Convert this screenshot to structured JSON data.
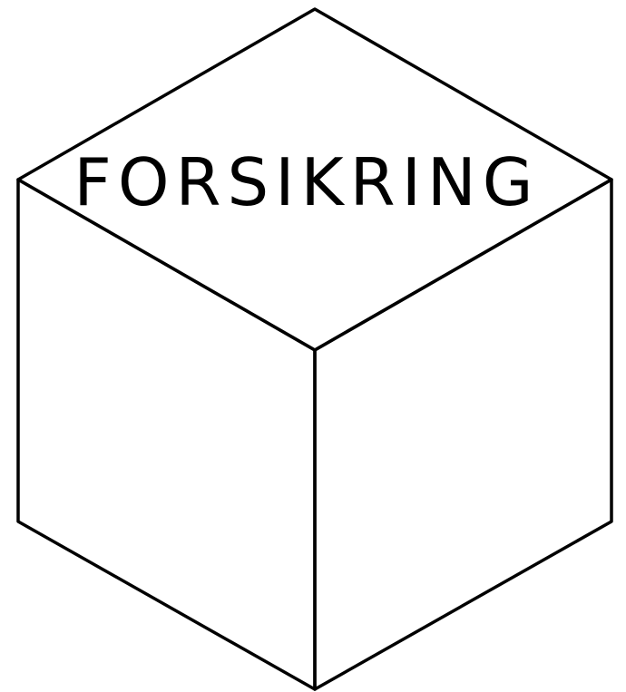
{
  "diagram": {
    "label": "FORSIKRING",
    "colors": {
      "stroke": "#000000",
      "background": "#ffffff"
    }
  }
}
